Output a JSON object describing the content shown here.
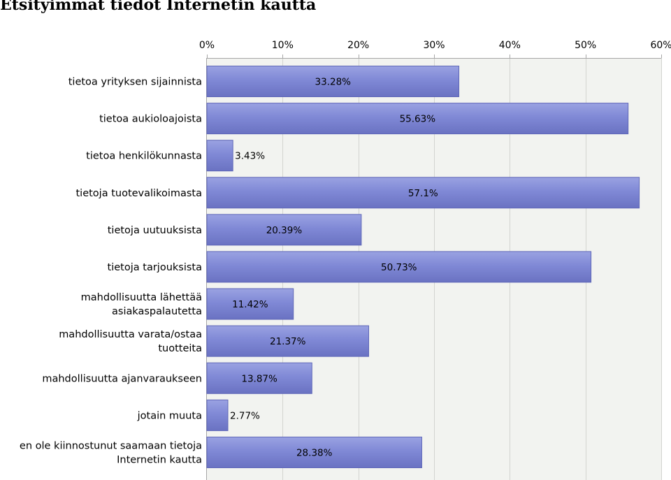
{
  "chart_data": {
    "type": "bar",
    "orientation": "horizontal",
    "title": "Etsityimmät tiedot Internetin kautta",
    "categories": [
      "tietoa yrityksen sijainnista",
      "tietoa aukioloajoista",
      "tietoa henkilökunnasta",
      "tietoja tuotevalikoimasta",
      "tietoja uutuuksista",
      "tietoja tarjouksista",
      "mahdollisuutta lähettää asiakaspalautetta",
      "mahdollisuutta varata/ostaa tuotteita",
      "mahdollisuutta ajanvaraukseen",
      "jotain muuta",
      "en ole kiinnostunut saamaan tietoja Internetin kautta"
    ],
    "category_lines": [
      [
        "tietoa yrityksen sijainnista"
      ],
      [
        "tietoa aukioloajoista"
      ],
      [
        "tietoa henkilökunnasta"
      ],
      [
        "tietoja tuotevalikoimasta"
      ],
      [
        "tietoja uutuuksista"
      ],
      [
        "tietoja tarjouksista"
      ],
      [
        "mahdollisuutta lähettää",
        "asiakaspalautetta"
      ],
      [
        "mahdollisuutta varata/ostaa",
        "tuotteita"
      ],
      [
        "mahdollisuutta ajanvaraukseen"
      ],
      [
        "jotain muuta"
      ],
      [
        "en ole kiinnostunut saamaan tietoja",
        "Internetin kautta"
      ]
    ],
    "values": [
      33.28,
      55.63,
      3.43,
      57.1,
      20.39,
      50.73,
      11.42,
      21.37,
      13.87,
      2.77,
      28.38
    ],
    "value_labels": [
      "33.28%",
      "55.63%",
      "3.43%",
      "57.1%",
      "20.39%",
      "50.73%",
      "11.42%",
      "21.37%",
      "13.87%",
      "2.77%",
      "28.38%"
    ],
    "xlim": [
      0,
      60
    ],
    "x_ticks": [
      0,
      10,
      20,
      30,
      40,
      50,
      60
    ],
    "x_tick_labels": [
      "0%",
      "10%",
      "20%",
      "30%",
      "40%",
      "50%",
      "60%"
    ],
    "x_axis_position": "top",
    "grid": true,
    "xlabel": "",
    "ylabel": "",
    "colors": {
      "bar_light": "#9aa2e2",
      "bar_mid": "#8089d6",
      "bar_dark": "#6a72c2",
      "bar_edge": "#5f67b8",
      "plot_bg": "#f2f3f0",
      "grid": "#d3d4d0",
      "axis": "#a6a6a6"
    }
  }
}
